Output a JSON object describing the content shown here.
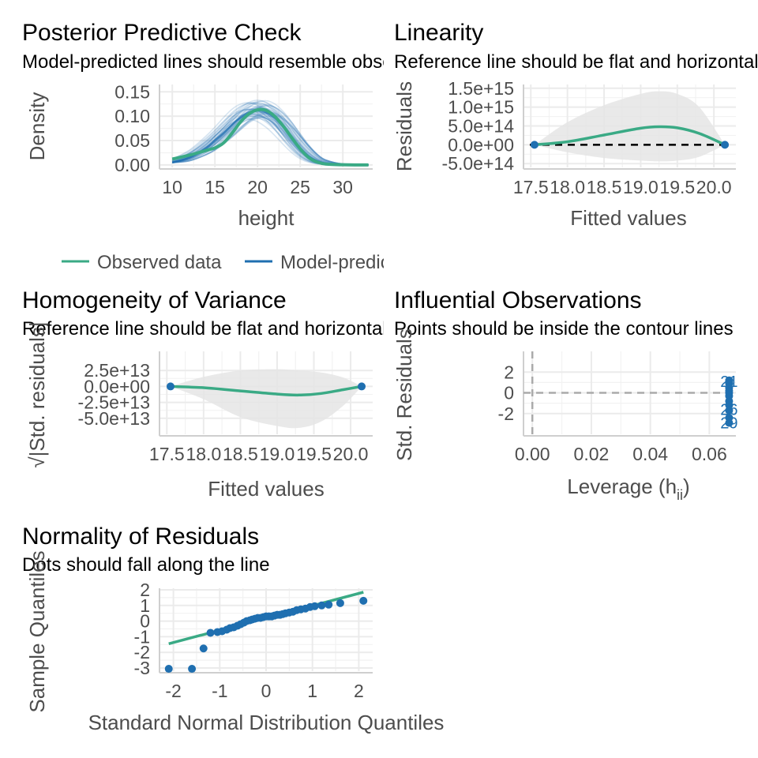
{
  "chart_data": [
    {
      "id": "ppc",
      "type": "line",
      "title": "Posterior Predictive Check",
      "subtitle": "Model-predicted lines should resemble observed data line",
      "xlabel": "height",
      "ylabel": "Density",
      "xlim": [
        8.5,
        33.5
      ],
      "ylim": [
        -0.005,
        0.165
      ],
      "xticks": [
        10,
        15,
        20,
        25,
        30
      ],
      "yticks": [
        0.0,
        0.05,
        0.1,
        0.15
      ],
      "ytick_labels": [
        "0.00",
        "0.05",
        "0.10",
        "0.15"
      ],
      "legend": {
        "position": "bottom",
        "entries": [
          "Observed data",
          "Model-predicted data"
        ]
      },
      "colors": {
        "observed": "#3aaa85",
        "predicted": "#1f6fb0"
      },
      "series": [
        {
          "name": "Observed data",
          "x": [
            10,
            12,
            14,
            15,
            16,
            17,
            18,
            19,
            20,
            21,
            22,
            23,
            24,
            25,
            26,
            27,
            28,
            30,
            33
          ],
          "values": [
            0.012,
            0.02,
            0.03,
            0.035,
            0.045,
            0.065,
            0.088,
            0.105,
            0.113,
            0.112,
            0.1,
            0.08,
            0.056,
            0.033,
            0.015,
            0.006,
            0.002,
            0.0005,
            0.0
          ]
        },
        {
          "name": "Model-predicted data",
          "x": [
            10,
            12,
            14,
            15,
            16,
            17,
            18,
            19,
            20,
            21,
            22,
            23,
            24,
            25,
            26,
            27,
            28,
            30,
            33
          ],
          "values": [
            0.005,
            0.015,
            0.035,
            0.05,
            0.065,
            0.082,
            0.098,
            0.108,
            0.112,
            0.108,
            0.096,
            0.078,
            0.056,
            0.035,
            0.018,
            0.008,
            0.003,
            0.0005,
            0.0
          ]
        }
      ]
    },
    {
      "id": "lin",
      "type": "line",
      "title": "Linearity",
      "subtitle": "Reference line should be flat and horizontal",
      "xlabel": "Fitted values",
      "ylabel": "Residuals",
      "xlim": [
        17.4,
        20.3
      ],
      "ylim": [
        -600000000000000.0,
        1600000000000000.0
      ],
      "xticks": [
        17.5,
        18.0,
        18.5,
        19.0,
        19.5,
        20.0
      ],
      "xtick_labels": [
        "17.5",
        "18.0",
        "18.5",
        "19.0",
        "19.5",
        "20.0"
      ],
      "yticks": [
        -500000000000000.0,
        0,
        500000000000000.0,
        1000000000000000.0,
        1500000000000000.0
      ],
      "ytick_labels": [
        "-5.0e+14",
        "0.0e+00",
        "5.0e+14",
        "1.0e+15",
        "1.5e+15"
      ],
      "colors": {
        "line": "#3aaa85",
        "points": "#1f6fb0",
        "band": "#e5e5e5",
        "ref": "#000000"
      },
      "points": {
        "x": [
          17.55,
          20.15
        ],
        "y": [
          0,
          0
        ]
      },
      "smooth": {
        "x": [
          17.55,
          18.0,
          18.5,
          19.0,
          19.25,
          19.5,
          19.8,
          20.15
        ],
        "y": [
          0,
          80000000000000.0,
          260000000000000.0,
          440000000000000.0,
          480000000000000.0,
          450000000000000.0,
          300000000000000.0,
          0
        ]
      },
      "band_upper": [
        0,
        600000000000000.0,
        1050000000000000.0,
        1350000000000000.0,
        1420000000000000.0,
        1350000000000000.0,
        1000000000000000.0,
        0
      ],
      "band_lower": [
        0,
        -200000000000000.0,
        -350000000000000.0,
        -420000000000000.0,
        -440000000000000.0,
        -420000000000000.0,
        -320000000000000.0,
        0
      ]
    },
    {
      "id": "hov",
      "type": "line",
      "title": "Homogeneity of Variance",
      "subtitle": "Reference line should be flat and horizontal",
      "xlabel": "Fitted values",
      "ylabel": "√|Std. residuals|",
      "xlim": [
        17.4,
        20.3
      ],
      "ylim": [
        -75000000000000.0,
        55000000000000.0
      ],
      "xticks": [
        17.5,
        18.0,
        18.5,
        19.0,
        19.5,
        20.0
      ],
      "xtick_labels": [
        "17.5",
        "18.0",
        "18.5",
        "19.0",
        "19.5",
        "20.0"
      ],
      "yticks": [
        -50000000000000.0,
        -25000000000000.0,
        0,
        25000000000000.0
      ],
      "ytick_labels": [
        "-5.0e+13",
        "-2.5e+13",
        "0.0e+00",
        "2.5e+13"
      ],
      "colors": {
        "line": "#3aaa85",
        "points": "#1f6fb0",
        "band": "#e5e5e5"
      },
      "points": {
        "x": [
          17.55,
          20.15
        ],
        "y": [
          0,
          0
        ]
      },
      "smooth": {
        "x": [
          17.55,
          18.0,
          18.5,
          19.0,
          19.3,
          19.6,
          19.9,
          20.15
        ],
        "y": [
          0,
          -2000000000000.0,
          -7000000000000.0,
          -12000000000000.0,
          -13500000000000.0,
          -11000000000000.0,
          -5000000000000.0,
          0
        ]
      },
      "band_upper": [
        0,
        15000000000000.0,
        25000000000000.0,
        27000000000000.0,
        25000000000000.0,
        22000000000000.0,
        14000000000000.0,
        0
      ],
      "band_lower": [
        0,
        -20000000000000.0,
        -48000000000000.0,
        -62000000000000.0,
        -65000000000000.0,
        -55000000000000.0,
        -30000000000000.0,
        0
      ]
    },
    {
      "id": "infl",
      "type": "scatter",
      "title": "Influential Observations",
      "subtitle": "Points should be inside the contour lines",
      "xlabel": "Leverage (h",
      "xlabel_sub": "ii",
      "xlabel_end": ")",
      "ylabel": "Std. Residuals",
      "xlim": [
        -0.003,
        0.069
      ],
      "ylim": [
        -4.0,
        4.0
      ],
      "xticks": [
        0.0,
        0.02,
        0.04,
        0.06
      ],
      "xtick_labels": [
        "0.00",
        "0.02",
        "0.04",
        "0.06"
      ],
      "yticks": [
        -2,
        0,
        2
      ],
      "ytick_labels": [
        "-2",
        "0",
        "2"
      ],
      "colors": {
        "points": "#1f6fb0",
        "ref": "#aaaaaa"
      },
      "points": {
        "x": [
          0.0667,
          0.0667,
          0.0667,
          0.0667,
          0.0667,
          0.0667,
          0.0667,
          0.0667,
          0.0667,
          0.0667,
          0.0667
        ],
        "y": [
          1.2,
          0.9,
          0.5,
          0.2,
          0.0,
          -0.3,
          -0.8,
          -1.2,
          -1.7,
          -2.4,
          -2.9
        ]
      },
      "point_labels": [
        {
          "text": "21",
          "x": 0.0667,
          "y": 1.1
        },
        {
          "text": "1",
          "x": 0.0667,
          "y": 0.5
        },
        {
          "text": "26",
          "x": 0.0667,
          "y": -1.6
        },
        {
          "text": "29",
          "x": 0.0667,
          "y": -2.9
        }
      ]
    },
    {
      "id": "qq",
      "type": "scatter",
      "title": "Normality of Residuals",
      "subtitle": "Dots should fall along the line",
      "xlabel": "Standard Normal Distribution Quantiles",
      "ylabel": "Sample Quantiles",
      "xlim": [
        -2.3,
        2.3
      ],
      "ylim": [
        -3.2,
        2.1
      ],
      "xticks": [
        -2,
        -1,
        0,
        1,
        2
      ],
      "xtick_labels": [
        "-2",
        "-1",
        "0",
        "1",
        "2"
      ],
      "yticks": [
        -3,
        -2,
        -1,
        0,
        1,
        2
      ],
      "ytick_labels": [
        "-3",
        "-2",
        "-1",
        "0",
        "1",
        "2"
      ],
      "colors": {
        "line": "#3aaa85",
        "points": "#1f6fb0"
      },
      "line": {
        "x": [
          -2.1,
          2.1
        ],
        "y": [
          -1.45,
          1.85
        ]
      },
      "points": {
        "x": [
          -2.1,
          -1.6,
          -1.35,
          -1.2,
          -1.05,
          -0.95,
          -0.85,
          -0.78,
          -0.7,
          -0.62,
          -0.55,
          -0.48,
          -0.42,
          -0.35,
          -0.3,
          -0.24,
          -0.18,
          -0.12,
          -0.06,
          0.0,
          0.06,
          0.12,
          0.18,
          0.24,
          0.3,
          0.36,
          0.42,
          0.5,
          0.58,
          0.66,
          0.75,
          0.85,
          0.95,
          1.05,
          1.2,
          1.35,
          1.6,
          2.1
        ],
        "y": [
          -3.05,
          -3.05,
          -1.75,
          -0.75,
          -0.7,
          -0.65,
          -0.55,
          -0.45,
          -0.4,
          -0.3,
          -0.2,
          -0.1,
          0.0,
          0.05,
          0.1,
          0.15,
          0.2,
          0.2,
          0.25,
          0.3,
          0.3,
          0.3,
          0.35,
          0.4,
          0.4,
          0.45,
          0.5,
          0.55,
          0.6,
          0.7,
          0.75,
          0.8,
          0.9,
          0.95,
          1.0,
          1.05,
          1.15,
          1.3
        ]
      }
    }
  ]
}
